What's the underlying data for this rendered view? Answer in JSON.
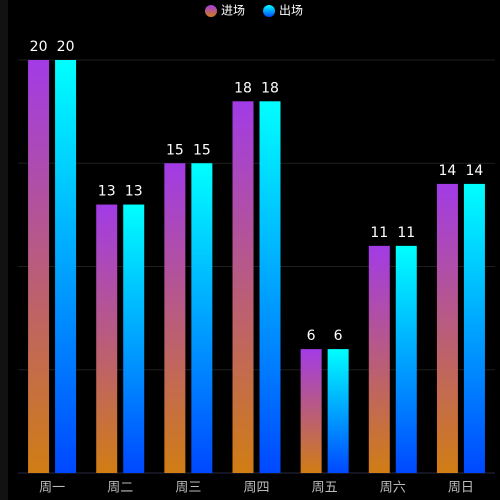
{
  "chart_data": {
    "type": "bar",
    "categories": [
      "周一",
      "周二",
      "周三",
      "周四",
      "周五",
      "周六",
      "周日"
    ],
    "series": [
      {
        "name": "进场",
        "color": [
          "#a23be6",
          "#d07d14"
        ],
        "values": [
          20,
          13,
          15,
          18,
          6,
          11,
          14
        ]
      },
      {
        "name": "出场",
        "color": [
          "#00ffff",
          "#0048ff"
        ],
        "values": [
          20,
          13,
          15,
          18,
          6,
          11,
          14
        ]
      }
    ],
    "ylim": [
      0,
      20
    ],
    "yticks": [
      0,
      5,
      10,
      15,
      20
    ],
    "grid": true,
    "legend": "top"
  }
}
